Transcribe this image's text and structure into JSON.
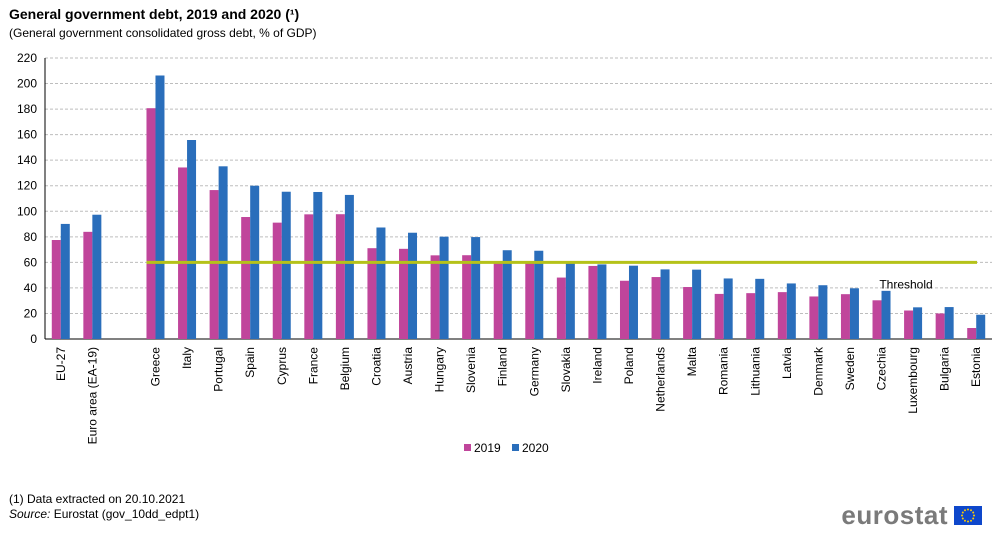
{
  "title": "General government debt, 2019 and 2020 (¹)",
  "subtitle": "(General  government  consolidated gross debt, % of GDP)",
  "footnote": "(1) Data extracted on 20.10.2021",
  "source_label": "Source:",
  "source_value": " Eurostat (gov_10dd_edpt1)",
  "logo_text": "eurostat",
  "colors": {
    "s2019": "#c0459b",
    "s2020": "#2a6ebb",
    "threshold": "#b5c21a",
    "grid": "#bdbdbd"
  },
  "chart_data": {
    "type": "bar",
    "title": "General government debt, 2019 and 2020 (¹)",
    "subtitle": "(General  government  consolidated gross debt, % of GDP)",
    "xlabel": "",
    "ylabel": "",
    "ylim": [
      0,
      220
    ],
    "yticks": [
      0,
      20,
      40,
      60,
      80,
      100,
      120,
      140,
      160,
      180,
      200,
      220
    ],
    "grid": true,
    "legend": "bottom-center",
    "categories": [
      "EU-27",
      "Euro area (EA-19)",
      "",
      "Greece",
      "Italy",
      "Portugal",
      "Spain",
      "Cyprus",
      "France",
      "Belgium",
      "Croatia",
      "Austria",
      "Hungary",
      "Slovenia",
      "Finland",
      "Germany",
      "Slovakia",
      "Ireland",
      "Poland",
      "Netherlands",
      "Malta",
      "Romania",
      "Lithuania",
      "Latvia",
      "Denmark",
      "Sweden",
      "Czechia",
      "Luxembourg",
      "Bulgaria",
      "Estonia"
    ],
    "series": [
      {
        "name": "2019",
        "values": [
          77.5,
          83.9,
          null,
          180.7,
          134.3,
          116.6,
          95.5,
          91.1,
          97.6,
          97.7,
          71.1,
          70.6,
          65.5,
          65.6,
          59.6,
          59.7,
          48.1,
          57.2,
          45.6,
          48.5,
          40.7,
          35.3,
          35.9,
          36.7,
          33.3,
          35.1,
          30.3,
          22.3,
          20.0,
          8.6
        ]
      },
      {
        "name": "2020",
        "values": [
          90.1,
          97.3,
          null,
          206.3,
          155.8,
          135.2,
          120.0,
          115.3,
          115.1,
          112.8,
          87.3,
          83.2,
          80.1,
          79.8,
          69.5,
          69.1,
          59.7,
          58.4,
          57.4,
          54.5,
          54.3,
          47.4,
          47.1,
          43.5,
          42.1,
          39.7,
          37.7,
          24.8,
          25.0,
          19.0
        ]
      }
    ],
    "threshold": {
      "value": 60,
      "label": "Threshold"
    }
  }
}
